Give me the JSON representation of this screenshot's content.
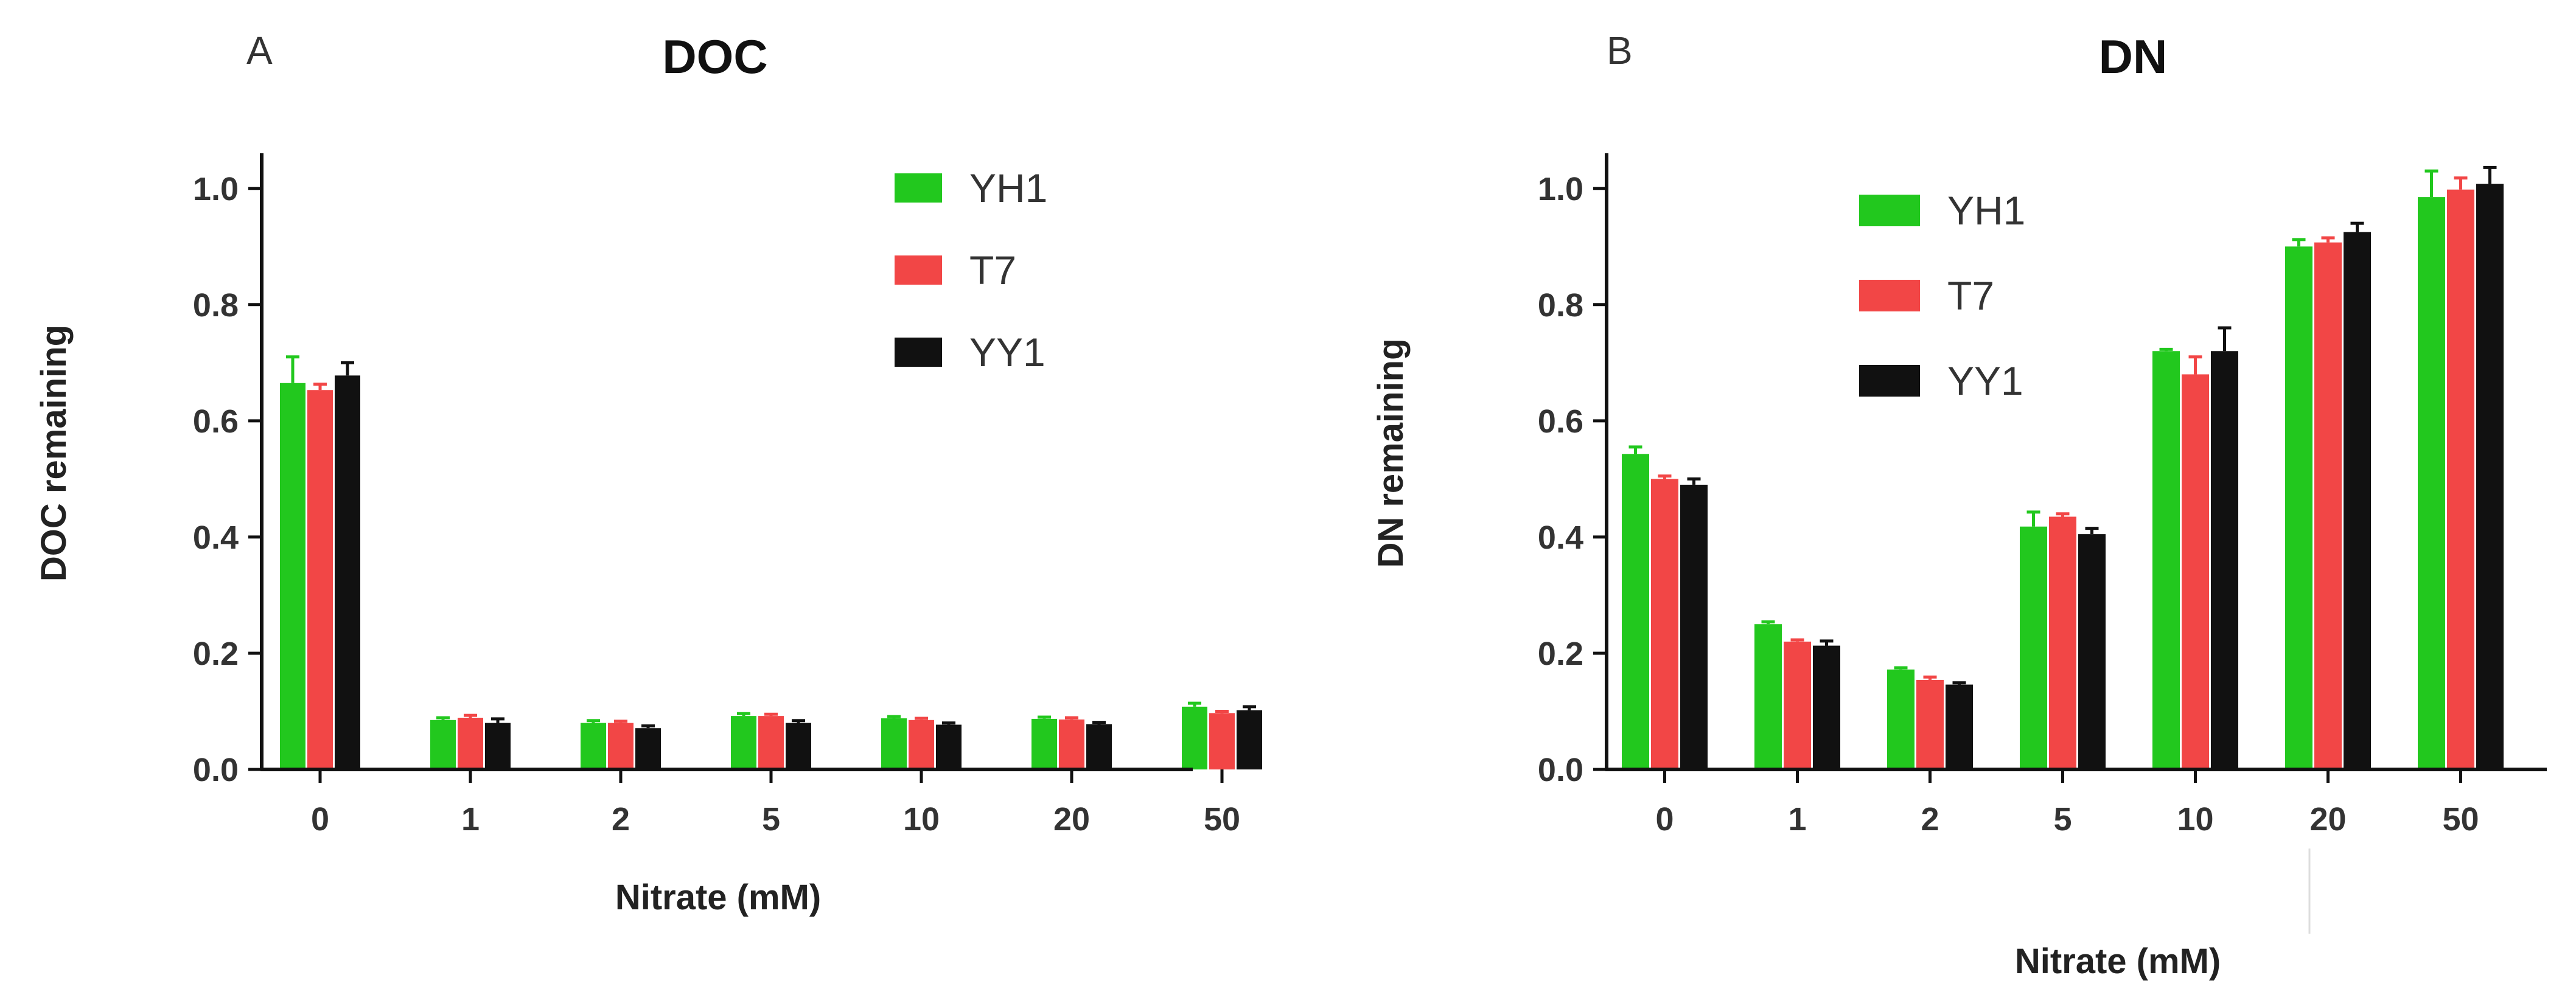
{
  "figure": {
    "colors": {
      "YH1": "#22c81e",
      "T7": "#f24646",
      "YY1": "#111111",
      "axis": "#111111"
    }
  },
  "chart_data": [
    {
      "panel": "A",
      "type": "bar",
      "title": "DOC",
      "xlabel": "Nitrate (mM)",
      "ylabel": "DOC  remaining",
      "categories": [
        "0",
        "1",
        "2",
        "5",
        "10",
        "20",
        "50"
      ],
      "ylim": [
        0,
        1.05
      ],
      "yticks": [
        "0.0",
        "0.2",
        "0.4",
        "0.6",
        "0.8",
        "1.0"
      ],
      "legend_position": "top-right",
      "series": [
        {
          "name": "YH1",
          "color": "#22c81e",
          "values": [
            0.665,
            0.085,
            0.08,
            0.092,
            0.088,
            0.087,
            0.108
          ],
          "errors": [
            0.045,
            0.004,
            0.004,
            0.004,
            0.003,
            0.003,
            0.006
          ]
        },
        {
          "name": "T7",
          "color": "#f24646",
          "values": [
            0.653,
            0.089,
            0.08,
            0.092,
            0.085,
            0.086,
            0.097
          ],
          "errors": [
            0.01,
            0.004,
            0.003,
            0.003,
            0.003,
            0.003,
            0.003
          ]
        },
        {
          "name": "YY1",
          "color": "#111111",
          "values": [
            0.678,
            0.08,
            0.071,
            0.08,
            0.077,
            0.078,
            0.102
          ],
          "errors": [
            0.022,
            0.007,
            0.004,
            0.004,
            0.003,
            0.003,
            0.006
          ]
        }
      ]
    },
    {
      "panel": "B",
      "type": "bar",
      "title": "DN",
      "xlabel": "Nitrate (mM)",
      "ylabel": "DN  remaining",
      "categories": [
        "0",
        "1",
        "2",
        "5",
        "10",
        "20",
        "50"
      ],
      "ylim": [
        0,
        1.05
      ],
      "yticks": [
        "0.0",
        "0.2",
        "0.4",
        "0.6",
        "0.8",
        "1.0"
      ],
      "legend_position": "top-left",
      "series": [
        {
          "name": "YH1",
          "color": "#22c81e",
          "values": [
            0.543,
            0.25,
            0.172,
            0.418,
            0.72,
            0.9,
            0.985
          ],
          "errors": [
            0.012,
            0.004,
            0.003,
            0.025,
            0.003,
            0.012,
            0.045
          ]
        },
        {
          "name": "T7",
          "color": "#f24646",
          "values": [
            0.5,
            0.22,
            0.154,
            0.435,
            0.68,
            0.907,
            0.998
          ],
          "errors": [
            0.005,
            0.003,
            0.005,
            0.005,
            0.03,
            0.008,
            0.02
          ]
        },
        {
          "name": "YY1",
          "color": "#111111",
          "values": [
            0.49,
            0.213,
            0.146,
            0.405,
            0.72,
            0.925,
            1.008
          ],
          "errors": [
            0.01,
            0.008,
            0.003,
            0.01,
            0.04,
            0.015,
            0.028
          ]
        }
      ]
    }
  ]
}
